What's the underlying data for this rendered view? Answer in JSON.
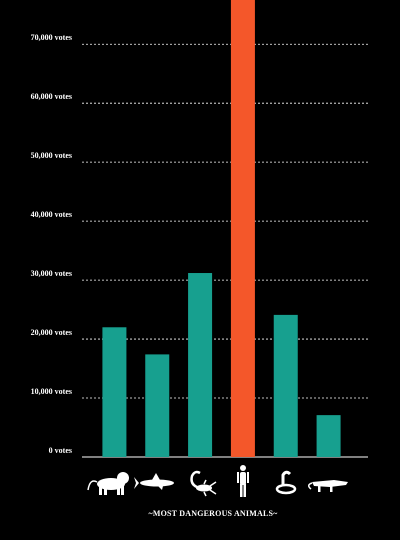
{
  "chart_data": {
    "type": "bar",
    "title": "~MOST DANGEROUS ANIMALS~",
    "categories": [
      null,
      null,
      null,
      null,
      null,
      null
    ],
    "values": [
      22000,
      17400,
      31200,
      80000,
      24100,
      7100
    ],
    "colors": [
      "#17a08f",
      "#17a08f",
      "#17a08f",
      "#f4572a",
      "#17a08f",
      "#17a08f"
    ],
    "ylim": [
      0,
      77500
    ],
    "yticks": [
      {
        "value": 0,
        "label": "0 votes"
      },
      {
        "value": 10000,
        "label": "10,000 votes"
      },
      {
        "value": 20000,
        "label": "20,000 votes"
      },
      {
        "value": 30000,
        "label": "30,000 votes"
      },
      {
        "value": 40000,
        "label": "40,000 votes"
      },
      {
        "value": 50000,
        "label": "50,000 votes"
      },
      {
        "value": 60000,
        "label": "60,000 votes"
      },
      {
        "value": 70000,
        "label": "70,000 votes"
      }
    ],
    "grid": true
  }
}
